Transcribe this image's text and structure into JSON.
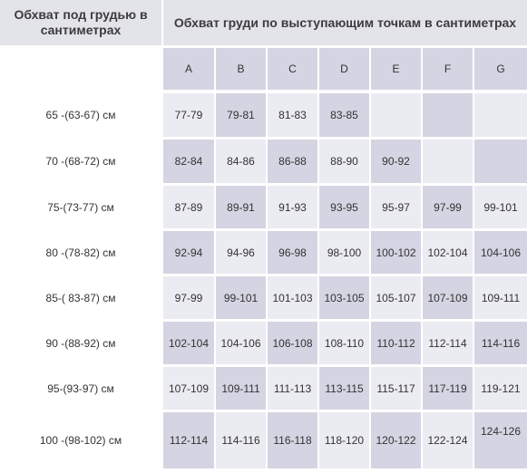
{
  "header": {
    "under_bust": "Обхват под грудью в сантиметрах",
    "over_bust": "Обхват груди по выступающим точкам в сантиметрах"
  },
  "cups": [
    "A",
    "B",
    "C",
    "D",
    "E",
    "F",
    "G"
  ],
  "rows": [
    {
      "label": "65 -(63-67) см",
      "values": [
        "77-79",
        "79-81",
        "81-83",
        "83-85",
        "",
        "",
        ""
      ]
    },
    {
      "label": "70 -(68-72) см",
      "values": [
        "82-84",
        "84-86",
        "86-88",
        "88-90",
        "90-92",
        "",
        ""
      ]
    },
    {
      "label": "75-(73-77) см",
      "values": [
        "87-89",
        "89-91",
        "91-93",
        "93-95",
        "95-97",
        "97-99",
        "99-101"
      ]
    },
    {
      "label": "80 -(78-82) см",
      "values": [
        "92-94",
        "94-96",
        "96-98",
        "98-100",
        "100-102",
        "102-104",
        "104-106"
      ]
    },
    {
      "label": "85-( 83-87) см",
      "values": [
        "97-99",
        "99-101",
        "101-103",
        "103-105",
        "105-107",
        "107-109",
        "109-111"
      ]
    },
    {
      "label": "90 -(88-92) см",
      "values": [
        "102-104",
        "104-106",
        "106-108",
        "108-110",
        "110-112",
        "112-114",
        "114-116"
      ]
    },
    {
      "label": "95-(93-97) см",
      "values": [
        "107-109",
        "109-111",
        "111-113",
        "113-115",
        "115-117",
        "117-119",
        "119-121"
      ]
    },
    {
      "label": "100 -(98-102) см",
      "values": [
        "112-114",
        "114-116",
        "116-118",
        "118-120",
        "120-122",
        "122-124",
        "124-126"
      ]
    }
  ],
  "colors": {
    "header_bg": "#e3e3ea",
    "cell_dark": "#d4d4e2",
    "cell_light": "#ebebf2"
  }
}
